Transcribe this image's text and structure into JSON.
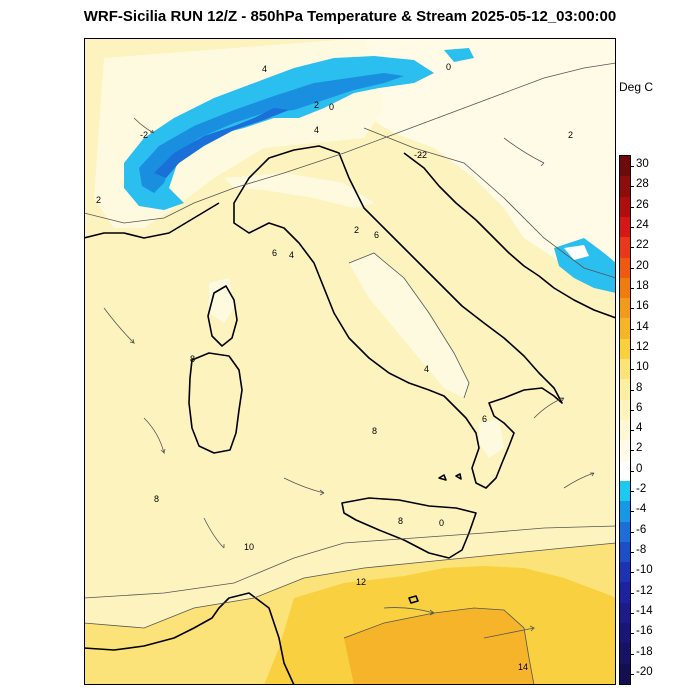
{
  "title": "WRF-Sicilia RUN 12/Z - 850hPa Temperature & Stream 2025-05-12_03:00:00",
  "units": "Deg C",
  "colorbar": {
    "levels": [
      30,
      28,
      26,
      24,
      22,
      20,
      18,
      16,
      14,
      12,
      10,
      8,
      6,
      4,
      2,
      0,
      -2,
      -4,
      -6,
      -8,
      -10,
      -12,
      -14,
      -16,
      -18,
      -20
    ],
    "colors": [
      "#6e0a0a",
      "#8e0c0c",
      "#b00e0e",
      "#d41818",
      "#e83a1a",
      "#ee5a12",
      "#f07a14",
      "#f29a1e",
      "#f5b42a",
      "#f8d040",
      "#fbe37a",
      "#fdeea0",
      "#fef4bc",
      "#fef8d4",
      "#fffbe8",
      "#ffffff",
      "#1ec8f0",
      "#1a96e6",
      "#1b6fd8",
      "#1c4ec8",
      "#1d33b4",
      "#1e22a0",
      "#1d1a8c",
      "#1a1578",
      "#171264",
      "#140f50"
    ]
  },
  "map": {
    "contour_labels": [
      "4",
      "2",
      "0",
      "0",
      "-2",
      "2",
      "-2",
      "2",
      "4",
      "6",
      "8",
      "8",
      "8",
      "8",
      "10",
      "6",
      "12",
      "14",
      "4",
      "-2",
      "0",
      "2",
      "4",
      "6"
    ]
  }
}
